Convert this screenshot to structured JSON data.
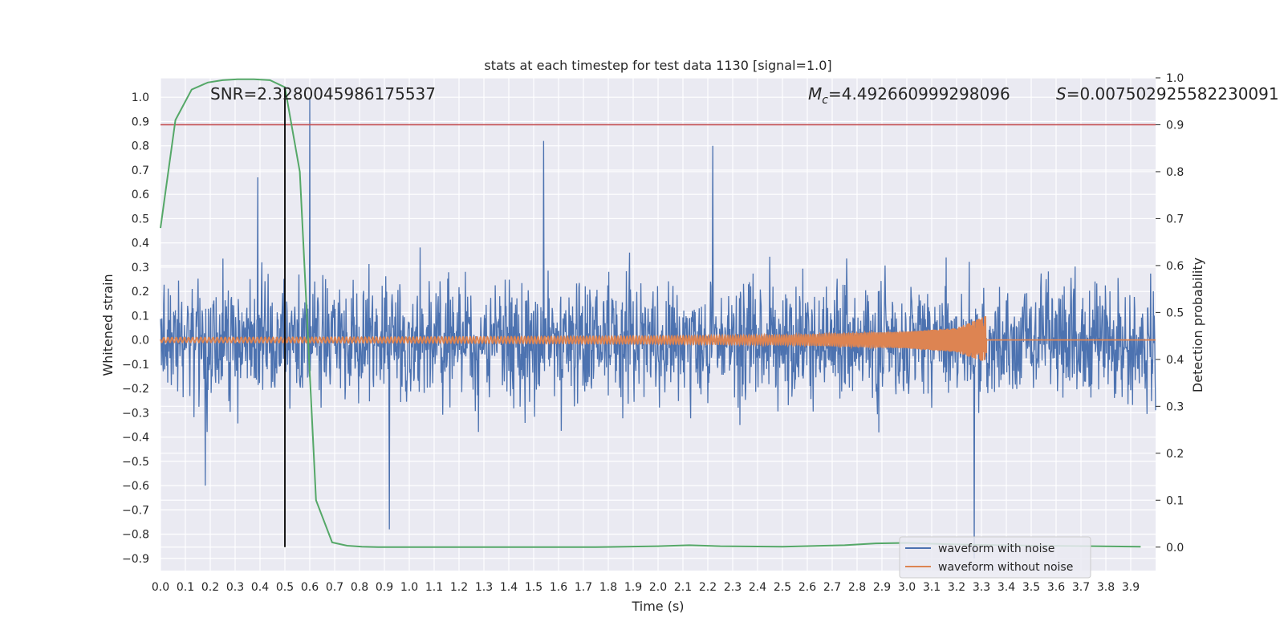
{
  "chart_data": {
    "type": "line",
    "title": "stats at each timestep for test data 1130 [signal=1.0]",
    "xlabel": "Time (s)",
    "ylabel_left": "Whitened strain",
    "ylabel_right": "Detection probability",
    "xlim": [
      0.0,
      4.0
    ],
    "ylim_left": [
      -0.95,
      1.08
    ],
    "ylim_right": [
      -0.05,
      1.0
    ],
    "x_ticks": [
      "0.0",
      "0.1",
      "0.2",
      "0.3",
      "0.4",
      "0.5",
      "0.6",
      "0.7",
      "0.8",
      "0.9",
      "1.0",
      "1.1",
      "1.2",
      "1.3",
      "1.4",
      "1.5",
      "1.6",
      "1.7",
      "1.8",
      "1.9",
      "2.0",
      "2.1",
      "2.2",
      "2.3",
      "2.4",
      "2.5",
      "2.6",
      "2.7",
      "2.8",
      "2.9",
      "3.0",
      "3.1",
      "3.2",
      "3.3",
      "3.4",
      "3.5",
      "3.6",
      "3.7",
      "3.8",
      "3.9"
    ],
    "y_left_ticks": [
      "1.0",
      "0.9",
      "0.8",
      "0.7",
      "0.6",
      "0.5",
      "0.4",
      "0.3",
      "0.2",
      "0.1",
      "0.0",
      "−0.1",
      "−0.2",
      "−0.3",
      "−0.4",
      "−0.5",
      "−0.6",
      "−0.7",
      "−0.8",
      "−0.9"
    ],
    "y_right_ticks": [
      "1.0",
      "0.9",
      "0.8",
      "0.7",
      "0.6",
      "0.5",
      "0.4",
      "0.3",
      "0.2",
      "0.1",
      "0.0"
    ],
    "annotations": {
      "snr": "SNR=2.3280045986175537",
      "mc_symbol": "M",
      "mc_subscript": "c",
      "mc_value": "=4.492660999298096",
      "s_symbol": "S",
      "s_value": "=0.007502925582230091"
    },
    "legend": {
      "placement": "bottom-right",
      "entries": [
        "waveform with noise",
        "waveform without noise"
      ]
    },
    "threshold_right": 0.9,
    "vertical_marker_x": 0.5,
    "detection_probability": {
      "name": "detection probability",
      "color": "#55a868",
      "x": [
        0.0,
        0.06,
        0.125,
        0.19,
        0.25,
        0.31,
        0.375,
        0.44,
        0.5,
        0.56,
        0.625,
        0.69,
        0.75,
        0.81,
        0.875,
        1.0,
        1.25,
        1.5,
        1.75,
        2.0,
        2.125,
        2.25,
        2.5,
        2.75,
        2.875,
        3.0,
        3.125,
        3.25,
        3.5,
        3.75,
        3.94
      ],
      "y": [
        0.68,
        0.91,
        0.975,
        0.99,
        0.995,
        0.997,
        0.997,
        0.995,
        0.98,
        0.8,
        0.1,
        0.01,
        0.003,
        0.001,
        0.0,
        0.0,
        0.0,
        0.0,
        0.0,
        0.002,
        0.004,
        0.002,
        0.001,
        0.004,
        0.008,
        0.009,
        0.007,
        0.005,
        0.003,
        0.002,
        0.001
      ]
    },
    "series": [
      {
        "name": "waveform with noise",
        "color": "#4c72b0",
        "amplitude_range": [
          -0.9,
          1.0
        ],
        "peaks": [
          [
            0.6,
            1.0
          ],
          [
            1.54,
            0.82
          ],
          [
            2.22,
            0.8
          ],
          [
            0.39,
            0.67
          ],
          [
            3.27,
            -0.9
          ],
          [
            0.92,
            -0.78
          ],
          [
            0.18,
            -0.6
          ]
        ]
      },
      {
        "name": "waveform without noise",
        "color": "#dd8452",
        "envelope_x": [
          0.0,
          1.0,
          2.0,
          2.5,
          3.0,
          3.2,
          3.32
        ],
        "envelope_y": [
          0.01,
          0.012,
          0.016,
          0.02,
          0.035,
          0.05,
          0.1
        ],
        "end_time": 3.32
      }
    ],
    "colors": {
      "background": "#eaeaf2",
      "grid": "#ffffff",
      "threshold": "#c44e52",
      "marker": "#000000"
    }
  }
}
